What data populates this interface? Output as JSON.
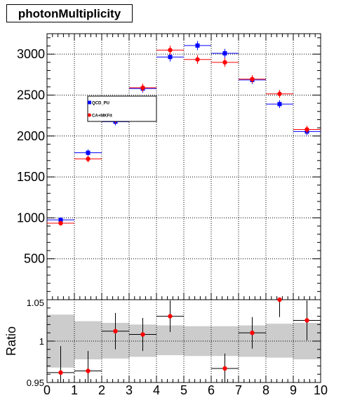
{
  "title": "photonMultiplicity",
  "chart_data": [
    {
      "type": "scatter",
      "title": "photonMultiplicity",
      "xlim": [
        0,
        10
      ],
      "ylim": [
        0,
        3250
      ],
      "y_ticks": [
        "500",
        "1000",
        "1500",
        "2000",
        "2500",
        "3000"
      ],
      "grid": true,
      "legend_position": "upper-left-center",
      "series": [
        {
          "name": "QCD_PU",
          "color": "#0000ff",
          "marker": "square",
          "x": [
            0.5,
            1.5,
            2.5,
            3.5,
            4.5,
            5.5,
            6.5,
            7.5,
            8.5,
            9.5
          ],
          "y": [
            975,
            1795,
            2175,
            2580,
            2965,
            3105,
            3010,
            2685,
            2390,
            2055
          ],
          "yerr": [
            30,
            40,
            45,
            50,
            55,
            55,
            55,
            50,
            48,
            45
          ]
        },
        {
          "name": "CA+MKFit",
          "color": "#ff0000",
          "marker": "circle",
          "x": [
            0.5,
            1.5,
            2.5,
            3.5,
            4.5,
            5.5,
            6.5,
            7.5,
            8.5,
            9.5
          ],
          "y": [
            935,
            1720,
            2200,
            2590,
            3050,
            2935,
            2900,
            2695,
            2515,
            2080
          ],
          "yerr": [
            30,
            40,
            45,
            50,
            55,
            55,
            55,
            50,
            48,
            45
          ]
        }
      ]
    },
    {
      "type": "scatter",
      "xlabel": "",
      "ylabel": "Ratio",
      "xlim": [
        0,
        10
      ],
      "ylim": [
        0.95,
        1.05
      ],
      "x_ticks": [
        "0",
        "1",
        "2",
        "3",
        "4",
        "5",
        "6",
        "7",
        "8",
        "9",
        "10"
      ],
      "y_ticks": [
        "0.95",
        "1",
        "1.05"
      ],
      "grid": true,
      "band_color": "#cccccc",
      "band_lo": [
        0.968,
        0.978,
        0.979,
        0.981,
        0.983,
        0.982,
        0.982,
        0.981,
        0.98,
        0.978
      ],
      "band_hi": [
        1.032,
        1.024,
        1.022,
        1.02,
        1.019,
        1.018,
        1.018,
        1.019,
        1.021,
        1.022
      ],
      "series": [
        {
          "name": "",
          "color": "#ff0000",
          "marker": "circle",
          "x": [
            0.5,
            1.5,
            2.5,
            3.5,
            4.5,
            5.5,
            6.5,
            7.5,
            8.5,
            9.5
          ],
          "y": [
            0.962,
            0.964,
            1.012,
            1.008,
            1.03,
            0.93,
            0.967,
            1.01,
            1.05,
            1.025
          ],
          "yerr": [
            0.032,
            0.024,
            0.022,
            0.02,
            0.019,
            0.018,
            0.018,
            0.019,
            0.021,
            0.024
          ]
        }
      ]
    }
  ]
}
